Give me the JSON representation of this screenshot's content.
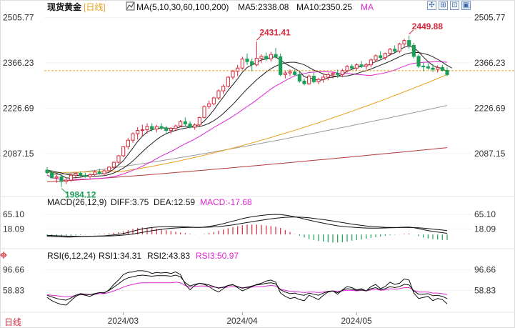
{
  "header": {
    "instrument": "现货黄金",
    "period": "[日线]",
    "ma_set": "MA(5,10,30,60,100,200)",
    "ma5": "MA5:2338.08",
    "ma10": "MA10:2350.25",
    "ma_more": "MA"
  },
  "controls": [
    "crosshair-toggle",
    "fit-chart",
    "expand-panel",
    "collapse-panel",
    "window-mode"
  ],
  "colors": {
    "up": "#d8283b",
    "down": "#1b9e56",
    "ma5": "#222222",
    "ma10": "#222222",
    "ma30": "#e026d4",
    "ma60": "#e8a11d",
    "ma100": "#9b9b9b",
    "ma200": "#b23a3a",
    "price_line": "#e8a11d",
    "label_red": "#d8283b",
    "label_green": "#1b9e56",
    "macd": "#111111",
    "dea": "#111111",
    "rsi1": "#111111",
    "rsi2": "#111111",
    "rsi3": "#e026d4"
  },
  "bottom_left_label": "日线",
  "x_labels": [
    "2024/03",
    "2024/04",
    "2024/05"
  ],
  "chart_data": [
    {
      "type": "candlestick",
      "title": "现货黄金 [日线]",
      "price_axis_ticks": [
        "2505.77",
        "2366.23",
        "2226.69",
        "2087.15"
      ],
      "y_range": [
        1970,
        2520
      ],
      "current_price": 2342,
      "annotations": [
        {
          "text": "2431.41",
          "value": 2431.41,
          "index": 44
        },
        {
          "text": "2449.88",
          "value": 2449.88,
          "index": 76
        },
        {
          "text": "1984.12",
          "value": 1984.12,
          "index": 3
        }
      ],
      "ohlc": [
        [
          2036,
          2045,
          2023,
          2028
        ],
        [
          2028,
          2035,
          2010,
          2012
        ],
        [
          2012,
          2022,
          1997,
          2015
        ],
        [
          2015,
          2020,
          1984.12,
          2001
        ],
        [
          2001,
          2012,
          1993,
          2005
        ],
        [
          2005,
          2025,
          2000,
          2020
        ],
        [
          2020,
          2030,
          2010,
          2026
        ],
        [
          2026,
          2032,
          2016,
          2020
        ],
        [
          2020,
          2028,
          2012,
          2016
        ],
        [
          2016,
          2026,
          2010,
          2022
        ],
        [
          2022,
          2035,
          2018,
          2030
        ],
        [
          2030,
          2040,
          2022,
          2025
        ],
        [
          2025,
          2038,
          2020,
          2034
        ],
        [
          2034,
          2048,
          2030,
          2045
        ],
        [
          2045,
          2062,
          2040,
          2060
        ],
        [
          2060,
          2083,
          2055,
          2080
        ],
        [
          2080,
          2110,
          2076,
          2108
        ],
        [
          2108,
          2135,
          2100,
          2128
        ],
        [
          2128,
          2152,
          2120,
          2148
        ],
        [
          2148,
          2168,
          2130,
          2158
        ],
        [
          2158,
          2176,
          2140,
          2160
        ],
        [
          2160,
          2180,
          2148,
          2170
        ],
        [
          2170,
          2180,
          2155,
          2162
        ],
        [
          2162,
          2175,
          2152,
          2170
        ],
        [
          2170,
          2180,
          2160,
          2165
        ],
        [
          2165,
          2172,
          2150,
          2158
        ],
        [
          2158,
          2168,
          2148,
          2164
        ],
        [
          2164,
          2176,
          2156,
          2172
        ],
        [
          2172,
          2190,
          2168,
          2185
        ],
        [
          2185,
          2198,
          2170,
          2178
        ],
        [
          2178,
          2186,
          2164,
          2168
        ],
        [
          2168,
          2180,
          2160,
          2175
        ],
        [
          2175,
          2200,
          2170,
          2198
        ],
        [
          2198,
          2235,
          2195,
          2232
        ],
        [
          2232,
          2250,
          2225,
          2240
        ],
        [
          2240,
          2262,
          2235,
          2258
        ],
        [
          2258,
          2285,
          2252,
          2280
        ],
        [
          2280,
          2300,
          2270,
          2294
        ],
        [
          2294,
          2325,
          2290,
          2322
        ],
        [
          2322,
          2345,
          2315,
          2340
        ],
        [
          2340,
          2360,
          2325,
          2350
        ],
        [
          2350,
          2385,
          2345,
          2378
        ],
        [
          2378,
          2395,
          2360,
          2370
        ],
        [
          2370,
          2380,
          2340,
          2360
        ],
        [
          2360,
          2431.41,
          2355,
          2380
        ],
        [
          2380,
          2392,
          2365,
          2386
        ],
        [
          2386,
          2398,
          2372,
          2378
        ],
        [
          2378,
          2400,
          2370,
          2392
        ],
        [
          2392,
          2412,
          2380,
          2385
        ],
        [
          2385,
          2395,
          2325,
          2330
        ],
        [
          2330,
          2342,
          2318,
          2335
        ],
        [
          2335,
          2346,
          2325,
          2338
        ],
        [
          2338,
          2345,
          2326,
          2330
        ],
        [
          2330,
          2338,
          2305,
          2310
        ],
        [
          2310,
          2318,
          2297,
          2302
        ],
        [
          2302,
          2330,
          2298,
          2325
        ],
        [
          2325,
          2336,
          2303,
          2308
        ],
        [
          2308,
          2320,
          2300,
          2315
        ],
        [
          2315,
          2330,
          2305,
          2322
        ],
        [
          2322,
          2335,
          2312,
          2330
        ],
        [
          2330,
          2340,
          2318,
          2334
        ],
        [
          2334,
          2345,
          2320,
          2330
        ],
        [
          2330,
          2348,
          2322,
          2342
        ],
        [
          2342,
          2360,
          2336,
          2355
        ],
        [
          2355,
          2362,
          2345,
          2350
        ],
        [
          2350,
          2365,
          2342,
          2360
        ],
        [
          2360,
          2372,
          2350,
          2356
        ],
        [
          2356,
          2366,
          2345,
          2360
        ],
        [
          2360,
          2380,
          2352,
          2375
        ],
        [
          2375,
          2392,
          2368,
          2388
        ],
        [
          2388,
          2402,
          2378,
          2382
        ],
        [
          2382,
          2398,
          2375,
          2395
        ],
        [
          2395,
          2412,
          2388,
          2408
        ],
        [
          2408,
          2420,
          2398,
          2402
        ],
        [
          2402,
          2428,
          2396,
          2424
        ],
        [
          2424,
          2440,
          2415,
          2435
        ],
        [
          2435,
          2449.88,
          2410,
          2420
        ],
        [
          2420,
          2428,
          2380,
          2386
        ],
        [
          2386,
          2392,
          2350,
          2356
        ],
        [
          2356,
          2366,
          2340,
          2354
        ],
        [
          2354,
          2365,
          2345,
          2350
        ],
        [
          2350,
          2362,
          2338,
          2346
        ],
        [
          2346,
          2358,
          2336,
          2352
        ],
        [
          2352,
          2360,
          2340,
          2343
        ],
        [
          2343,
          2352,
          2325,
          2330
        ]
      ],
      "ma": {
        "ma5": [
          2034,
          2029,
          2026,
          2020,
          2012,
          2011,
          2013,
          2014,
          2017,
          2021,
          2023,
          2025,
          2025,
          2029,
          2039,
          2052,
          2065,
          2084,
          2104,
          2124,
          2140,
          2153,
          2160,
          2164,
          2165,
          2166,
          2164,
          2165,
          2169,
          2171,
          2171,
          2172,
          2176,
          2187,
          2203,
          2221,
          2242,
          2261,
          2281,
          2299,
          2317,
          2337,
          2352,
          2360,
          2368,
          2375,
          2378,
          2383,
          2384,
          2375,
          2364,
          2356,
          2348,
          2340,
          2323,
          2320,
          2316,
          2312,
          2314,
          2320,
          2322,
          2325,
          2331,
          2340,
          2346,
          2352,
          2355,
          2357,
          2363,
          2370,
          2375,
          2382,
          2391,
          2397,
          2406,
          2414,
          2418,
          2413,
          2400,
          2384,
          2370,
          2358,
          2352,
          2349,
          2338.08
        ],
        "ma10": [
          2036,
          2033,
          2030,
          2027,
          2023,
          2021,
          2020,
          2019,
          2018,
          2017,
          2017,
          2018,
          2019,
          2022,
          2027,
          2034,
          2042,
          2052,
          2064,
          2078,
          2092,
          2106,
          2118,
          2130,
          2140,
          2148,
          2154,
          2158,
          2162,
          2165,
          2168,
          2168,
          2170,
          2174,
          2180,
          2188,
          2198,
          2210,
          2224,
          2238,
          2254,
          2270,
          2286,
          2300,
          2314,
          2326,
          2338,
          2348,
          2356,
          2362,
          2366,
          2368,
          2368,
          2365,
          2360,
          2352,
          2344,
          2338,
          2332,
          2328,
          2326,
          2325,
          2325,
          2326,
          2329,
          2333,
          2338,
          2342,
          2347,
          2353,
          2359,
          2365,
          2371,
          2378,
          2385,
          2392,
          2396,
          2398,
          2398,
          2395,
          2391,
          2385,
          2377,
          2368,
          2358,
          2350.25
        ]
      }
    },
    {
      "type": "macd",
      "title": "MACD(26,12,9)",
      "params": "MACD(26,12,9)",
      "readouts": [
        "DIFF:3.75",
        "DEA:12.59",
        "MACD:-17.68"
      ],
      "axis_ticks": [
        "65.10",
        "18.09"
      ],
      "y_range": [
        -32,
        88
      ],
      "diff": [
        -6.0,
        -6.5,
        -7.0,
        -7.8,
        -8.4,
        -8.2,
        -7.5,
        -6.8,
        -6.4,
        -6.0,
        -5.2,
        -4.8,
        -4.2,
        -3.0,
        -1.5,
        0.5,
        3.0,
        6.5,
        10.5,
        14.5,
        18.0,
        20.5,
        22.5,
        24.0,
        25.0,
        25.5,
        25.6,
        25.4,
        25.2,
        24.8,
        24.0,
        23.2,
        23.0,
        24.0,
        26.0,
        28.5,
        31.5,
        35.0,
        39.0,
        43.0,
        47.0,
        51.0,
        54.5,
        57.0,
        59.5,
        61.5,
        63.0,
        64.0,
        65.0,
        64.5,
        62.5,
        60.0,
        57.0,
        54.0,
        50.0,
        46.5,
        43.0,
        39.5,
        36.5,
        33.5,
        30.5,
        28.0,
        26.0,
        24.5,
        23.5,
        22.5,
        21.5,
        20.8,
        20.5,
        20.5,
        20.8,
        21.0,
        21.5,
        22.0,
        22.8,
        23.5,
        23.8,
        22.0,
        19.0,
        15.5,
        12.5,
        10.0,
        8.0,
        5.8,
        3.75
      ],
      "dea": [
        -3.0,
        -3.5,
        -4.0,
        -4.6,
        -5.2,
        -5.6,
        -5.9,
        -6.0,
        -6.0,
        -5.9,
        -5.7,
        -5.5,
        -5.2,
        -4.8,
        -4.2,
        -3.2,
        -2.0,
        -0.5,
        1.5,
        4.0,
        6.8,
        9.5,
        12.0,
        14.5,
        16.5,
        18.5,
        20.0,
        21.0,
        22.0,
        22.5,
        23.0,
        23.0,
        23.0,
        23.2,
        23.6,
        24.5,
        25.5,
        27.0,
        29.0,
        31.0,
        33.5,
        36.0,
        38.5,
        41.0,
        43.5,
        46.0,
        48.5,
        50.5,
        52.5,
        54.0,
        55.5,
        56.0,
        56.5,
        56.0,
        55.0,
        53.8,
        52.0,
        50.0,
        48.0,
        46.0,
        43.5,
        41.0,
        38.5,
        36.0,
        33.5,
        31.5,
        29.5,
        27.5,
        26.0,
        25.0,
        24.0,
        23.2,
        22.8,
        22.5,
        22.5,
        22.5,
        22.5,
        22.2,
        21.6,
        20.5,
        19.0,
        17.5,
        16.0,
        14.5,
        12.59
      ]
    },
    {
      "type": "rsi",
      "title": "RSI(6,12,24)",
      "params": "RSI(6,12,24)",
      "readouts": [
        "RSI1:34.31",
        "RSI2:43.83",
        "RSI3:50.97"
      ],
      "axis_ticks": [
        "96.66",
        "58.83"
      ],
      "y_range": [
        20,
        112
      ],
      "rsi1": [
        46,
        40,
        36,
        33,
        32,
        40,
        48,
        52,
        50,
        48,
        52,
        55,
        54,
        60,
        70,
        78,
        88,
        92,
        93,
        95,
        95,
        94,
        90,
        92,
        91,
        92,
        90,
        93,
        88,
        70,
        60,
        68,
        72,
        70,
        66,
        60,
        56,
        62,
        68,
        70,
        64,
        58,
        62,
        66,
        70,
        72,
        76,
        78,
        74,
        54,
        48,
        44,
        46,
        42,
        40,
        50,
        46,
        42,
        50,
        56,
        58,
        52,
        60,
        66,
        64,
        60,
        62,
        58,
        66,
        70,
        62,
        66,
        74,
        70,
        72,
        80,
        78,
        54,
        44,
        46,
        48,
        40,
        44,
        42,
        34.31
      ],
      "rsi2": [
        50,
        47,
        44,
        42,
        41,
        45,
        50,
        53,
        52,
        51,
        53,
        55,
        55,
        59,
        65,
        71,
        78,
        82,
        84,
        86,
        87,
        86,
        85,
        86,
        86,
        86,
        85,
        87,
        84,
        73,
        67,
        70,
        72,
        71,
        69,
        66,
        63,
        65,
        68,
        69,
        66,
        63,
        65,
        67,
        69,
        70,
        72,
        73,
        71,
        60,
        56,
        53,
        54,
        51,
        50,
        54,
        52,
        50,
        54,
        57,
        58,
        55,
        59,
        62,
        61,
        59,
        60,
        58,
        62,
        64,
        60,
        62,
        66,
        64,
        66,
        70,
        69,
        58,
        52,
        52,
        53,
        49,
        50,
        48,
        43.83
      ],
      "rsi3": [
        51,
        50,
        49,
        48,
        47,
        48,
        50,
        51,
        51,
        51,
        52,
        53,
        53,
        55,
        58,
        61,
        65,
        68,
        70,
        72,
        73,
        73,
        73,
        73,
        73,
        73,
        73,
        74,
        73,
        68,
        65,
        66,
        67,
        67,
        66,
        65,
        64,
        64,
        65,
        66,
        65,
        64,
        64,
        65,
        66,
        66,
        67,
        68,
        67,
        61,
        59,
        57,
        57,
        56,
        55,
        56,
        56,
        55,
        56,
        57,
        58,
        57,
        58,
        59,
        59,
        58,
        59,
        58,
        60,
        61,
        59,
        60,
        62,
        61,
        62,
        64,
        64,
        59,
        56,
        56,
        56,
        54,
        54,
        53,
        50.97
      ]
    }
  ]
}
